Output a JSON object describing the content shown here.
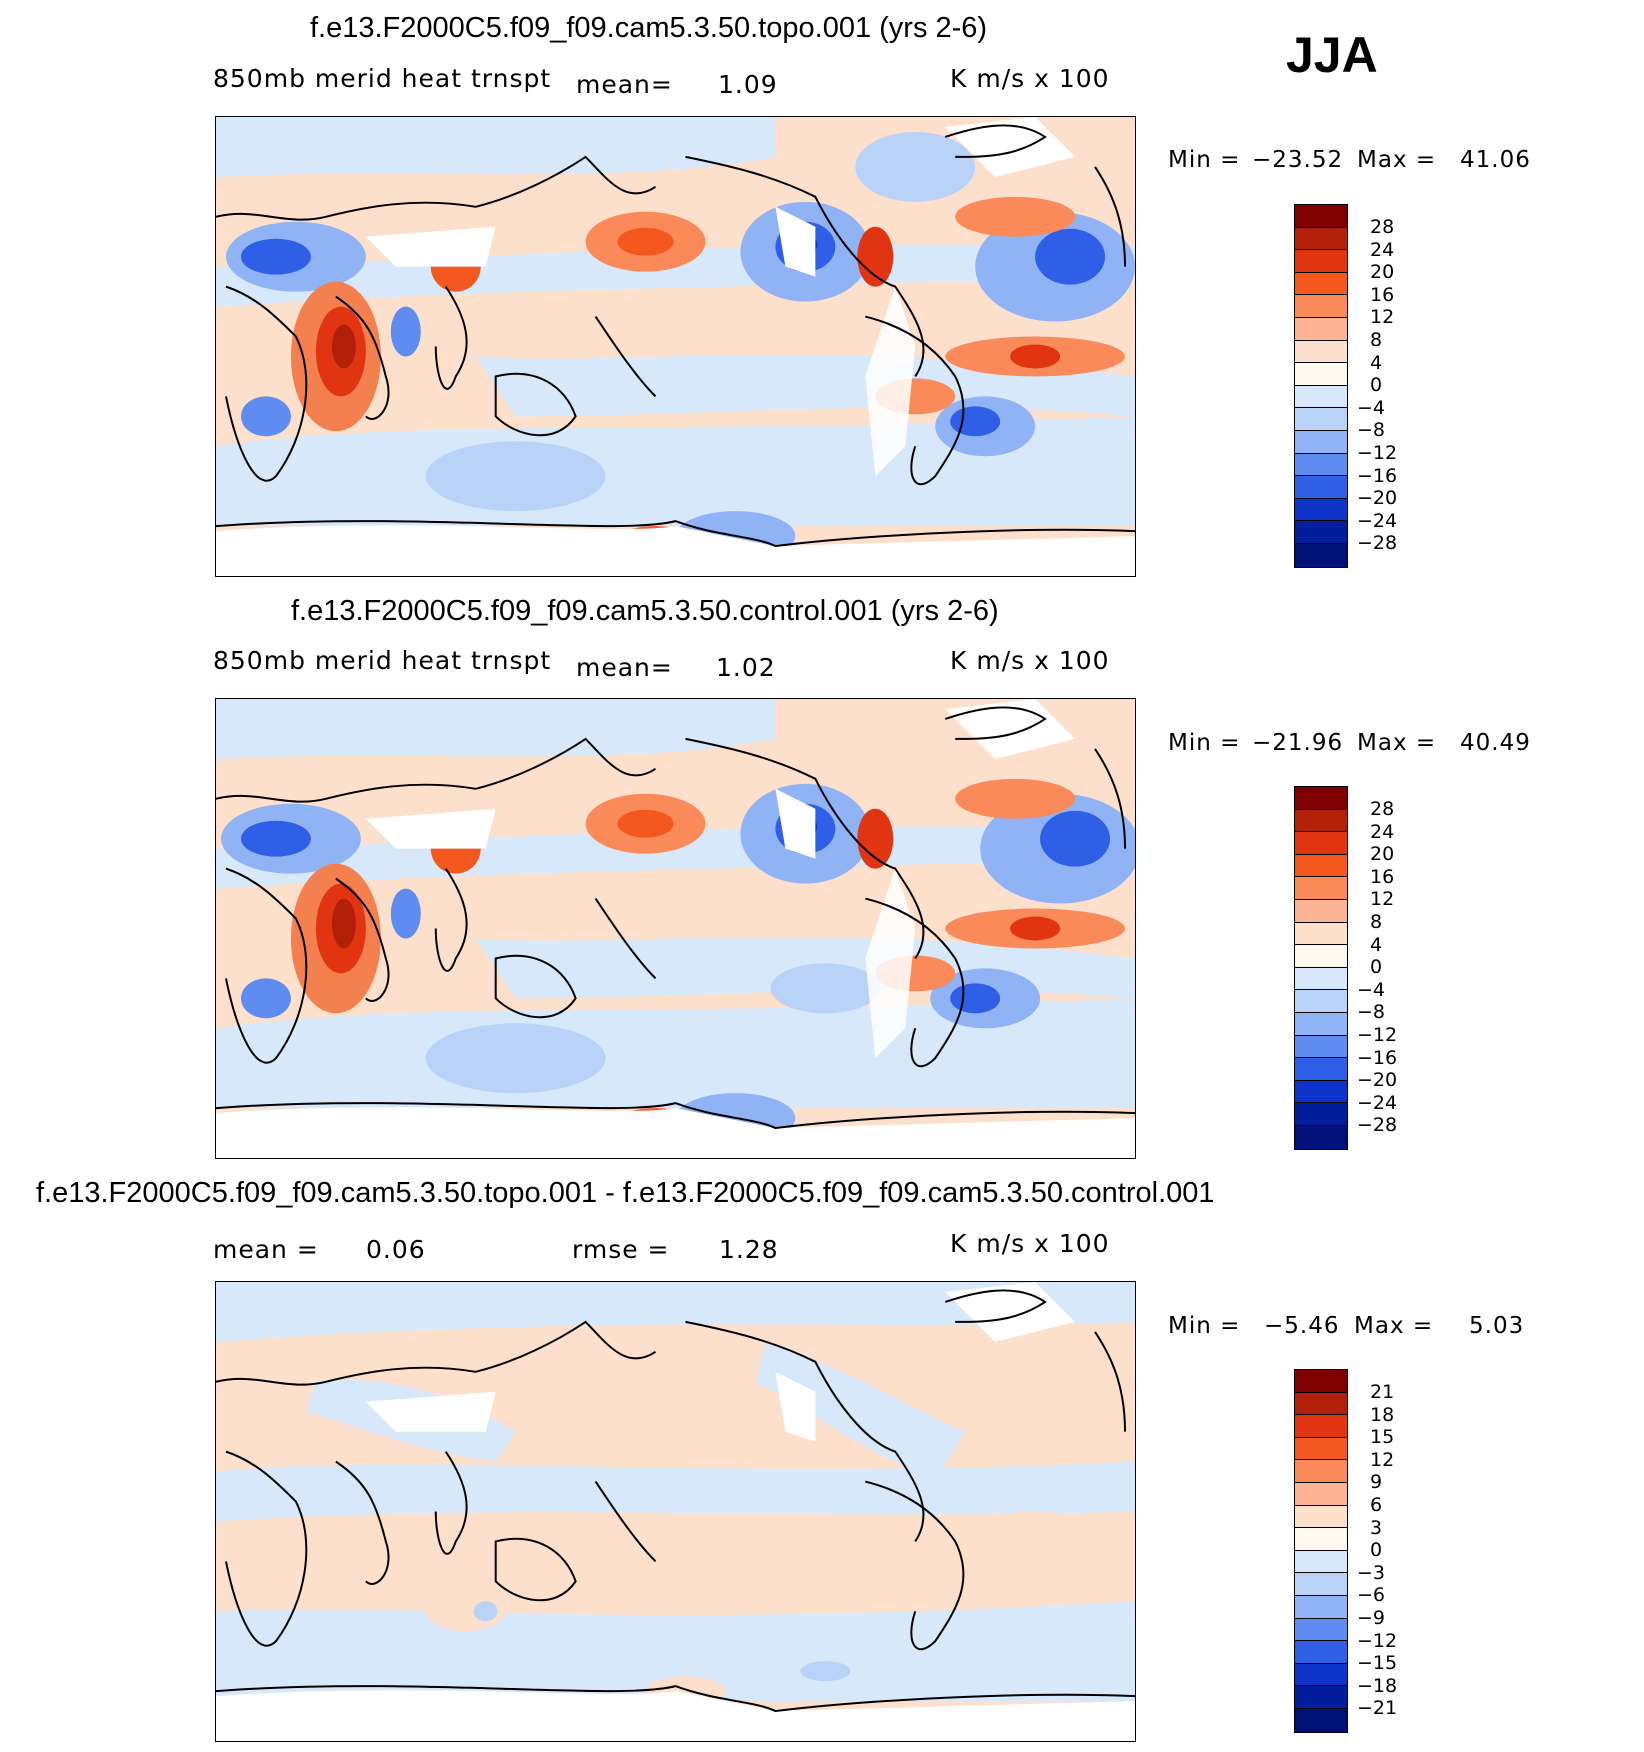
{
  "season": "JJA",
  "panels": [
    {
      "title": "f.e13.F2000C5.f09_f09.cam5.3.50.topo.001 (yrs 2-6)",
      "variable": "850mb merid heat trnspt",
      "stat1_label": "mean=",
      "stat1_value": "1.09",
      "stat2_label": "",
      "stat2_value": "",
      "units": "K m/s x 100",
      "min_label": "Min =",
      "min_value": "−23.52",
      "max_label": "Max =",
      "max_value": "41.06",
      "colorbar_ticks": [
        "28",
        "24",
        "20",
        "16",
        "12",
        "8",
        "4",
        "0",
        "−4",
        "−8",
        "−12",
        "−16",
        "−20",
        "−24",
        "−28"
      ]
    },
    {
      "title": "f.e13.F2000C5.f09_f09.cam5.3.50.control.001 (yrs 2-6)",
      "variable": "850mb merid heat trnspt",
      "stat1_label": "mean=",
      "stat1_value": "1.02",
      "stat2_label": "",
      "stat2_value": "",
      "units": "K m/s x 100",
      "min_label": "Min =",
      "min_value": "−21.96",
      "max_label": "Max =",
      "max_value": "40.49",
      "colorbar_ticks": [
        "28",
        "24",
        "20",
        "16",
        "12",
        "8",
        "4",
        "0",
        "−4",
        "−8",
        "−12",
        "−16",
        "−20",
        "−24",
        "−28"
      ]
    },
    {
      "title": "f.e13.F2000C5.f09_f09.cam5.3.50.topo.001 - f.e13.F2000C5.f09_f09.cam5.3.50.control.001",
      "variable": "",
      "stat1_label": "mean =",
      "stat1_value": "0.06",
      "stat2_label": "rmse =",
      "stat2_value": "1.28",
      "units": "K m/s x 100",
      "min_label": "Min =",
      "min_value": "−5.46",
      "max_label": "Max =",
      "max_value": "5.03",
      "colorbar_ticks": [
        "21",
        "18",
        "15",
        "12",
        "9",
        "6",
        "3",
        "0",
        "−3",
        "−6",
        "−9",
        "−12",
        "−15",
        "−18",
        "−21"
      ]
    }
  ],
  "colorbar_colors": [
    "#7f0000",
    "#b3200a",
    "#e03510",
    "#f5581f",
    "#fa8a5a",
    "#fcb495",
    "#fde0cc",
    "#fffaf0",
    "#d6e8fa",
    "#b8d2f8",
    "#8fb3f5",
    "#5e8cf0",
    "#2f5fe6",
    "#0d33c8",
    "#021e9c",
    "#00127a"
  ],
  "colors": {
    "dark_red": "#b3200a",
    "red": "#e8451a",
    "orange": "#f5804f",
    "light_orange": "#fcb495",
    "pale_orange": "#fde0cc",
    "pale_blue": "#d6e8fa",
    "light_blue": "#b8d2f8",
    "blue": "#8fb3f5",
    "mid_blue": "#5e8cf0",
    "dark_blue": "#1b47d8",
    "coastline": "#000000"
  }
}
